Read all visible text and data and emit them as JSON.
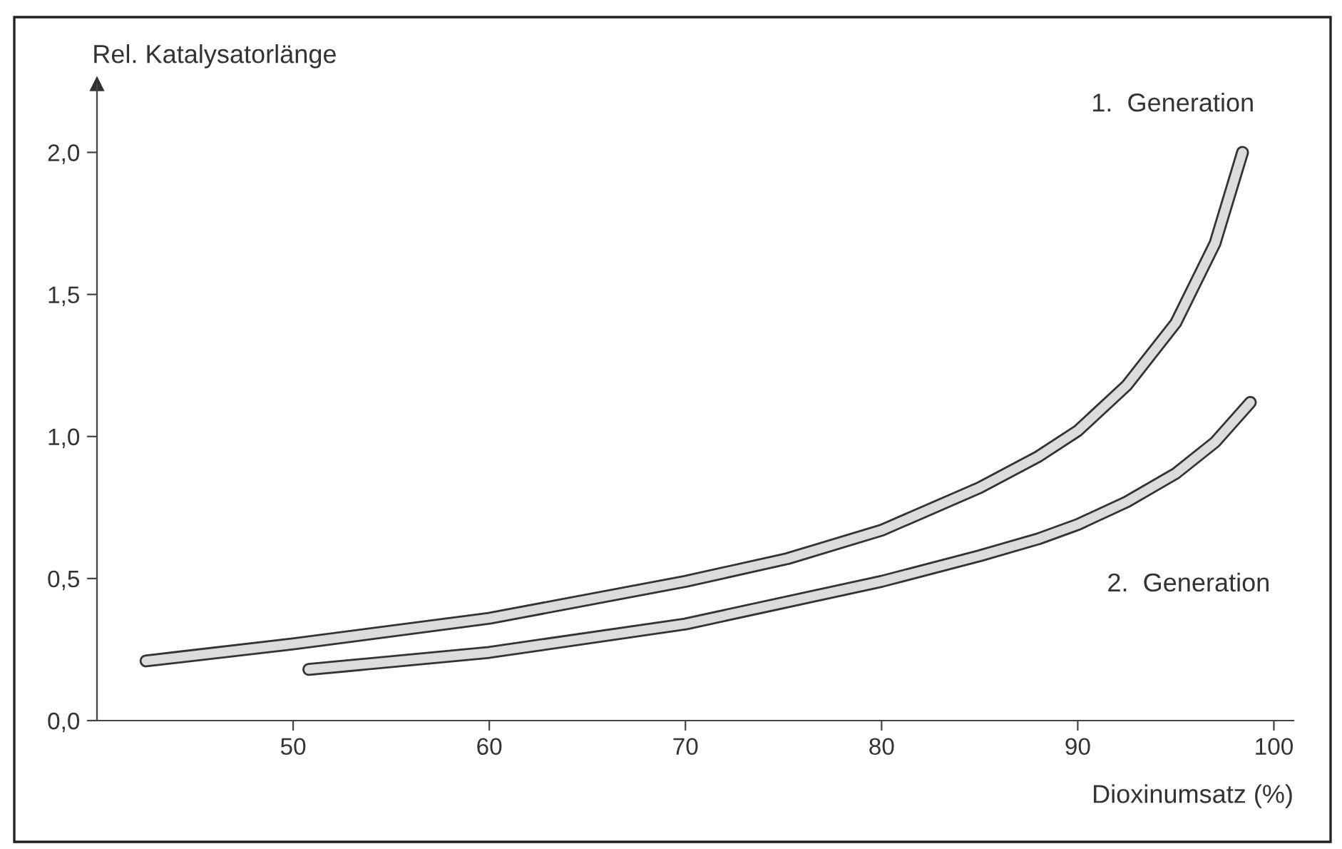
{
  "chart_data": {
    "type": "line",
    "ylabel": "Rel. Katalysatorlänge",
    "xlabel": "Dioxinumsatz (%)",
    "xlim": [
      40,
      101
    ],
    "ylim": [
      0,
      2.24
    ],
    "xticks": [
      50,
      60,
      70,
      80,
      90,
      100
    ],
    "yticks": [
      {
        "value": 0,
        "label": "0,0"
      },
      {
        "value": 0.5,
        "label": "0,5"
      },
      {
        "value": 1.0,
        "label": "1,0"
      },
      {
        "value": 1.5,
        "label": "1,5"
      },
      {
        "value": 2.0,
        "label": "2,0"
      }
    ],
    "grid": false,
    "legend": false,
    "marker": "none",
    "line_style": "solid",
    "series": [
      {
        "name": "1.  Generation",
        "color": "#dcdcdc",
        "x": [
          42.5,
          50,
          60,
          70,
          75.2,
          80,
          85,
          88,
          90,
          92.5,
          95,
          97,
          98.4
        ],
        "values": [
          0.21,
          0.27,
          0.36,
          0.49,
          0.57,
          0.67,
          0.82,
          0.93,
          1.02,
          1.18,
          1.4,
          1.68,
          2.0
        ]
      },
      {
        "name": "2.  Generation",
        "color": "#dcdcdc",
        "x": [
          50.8,
          60,
          70,
          80,
          85,
          88,
          90,
          92.5,
          95,
          97,
          98.8
        ],
        "values": [
          0.18,
          0.24,
          0.34,
          0.49,
          0.58,
          0.64,
          0.69,
          0.77,
          0.87,
          0.98,
          1.12
        ]
      }
    ]
  }
}
